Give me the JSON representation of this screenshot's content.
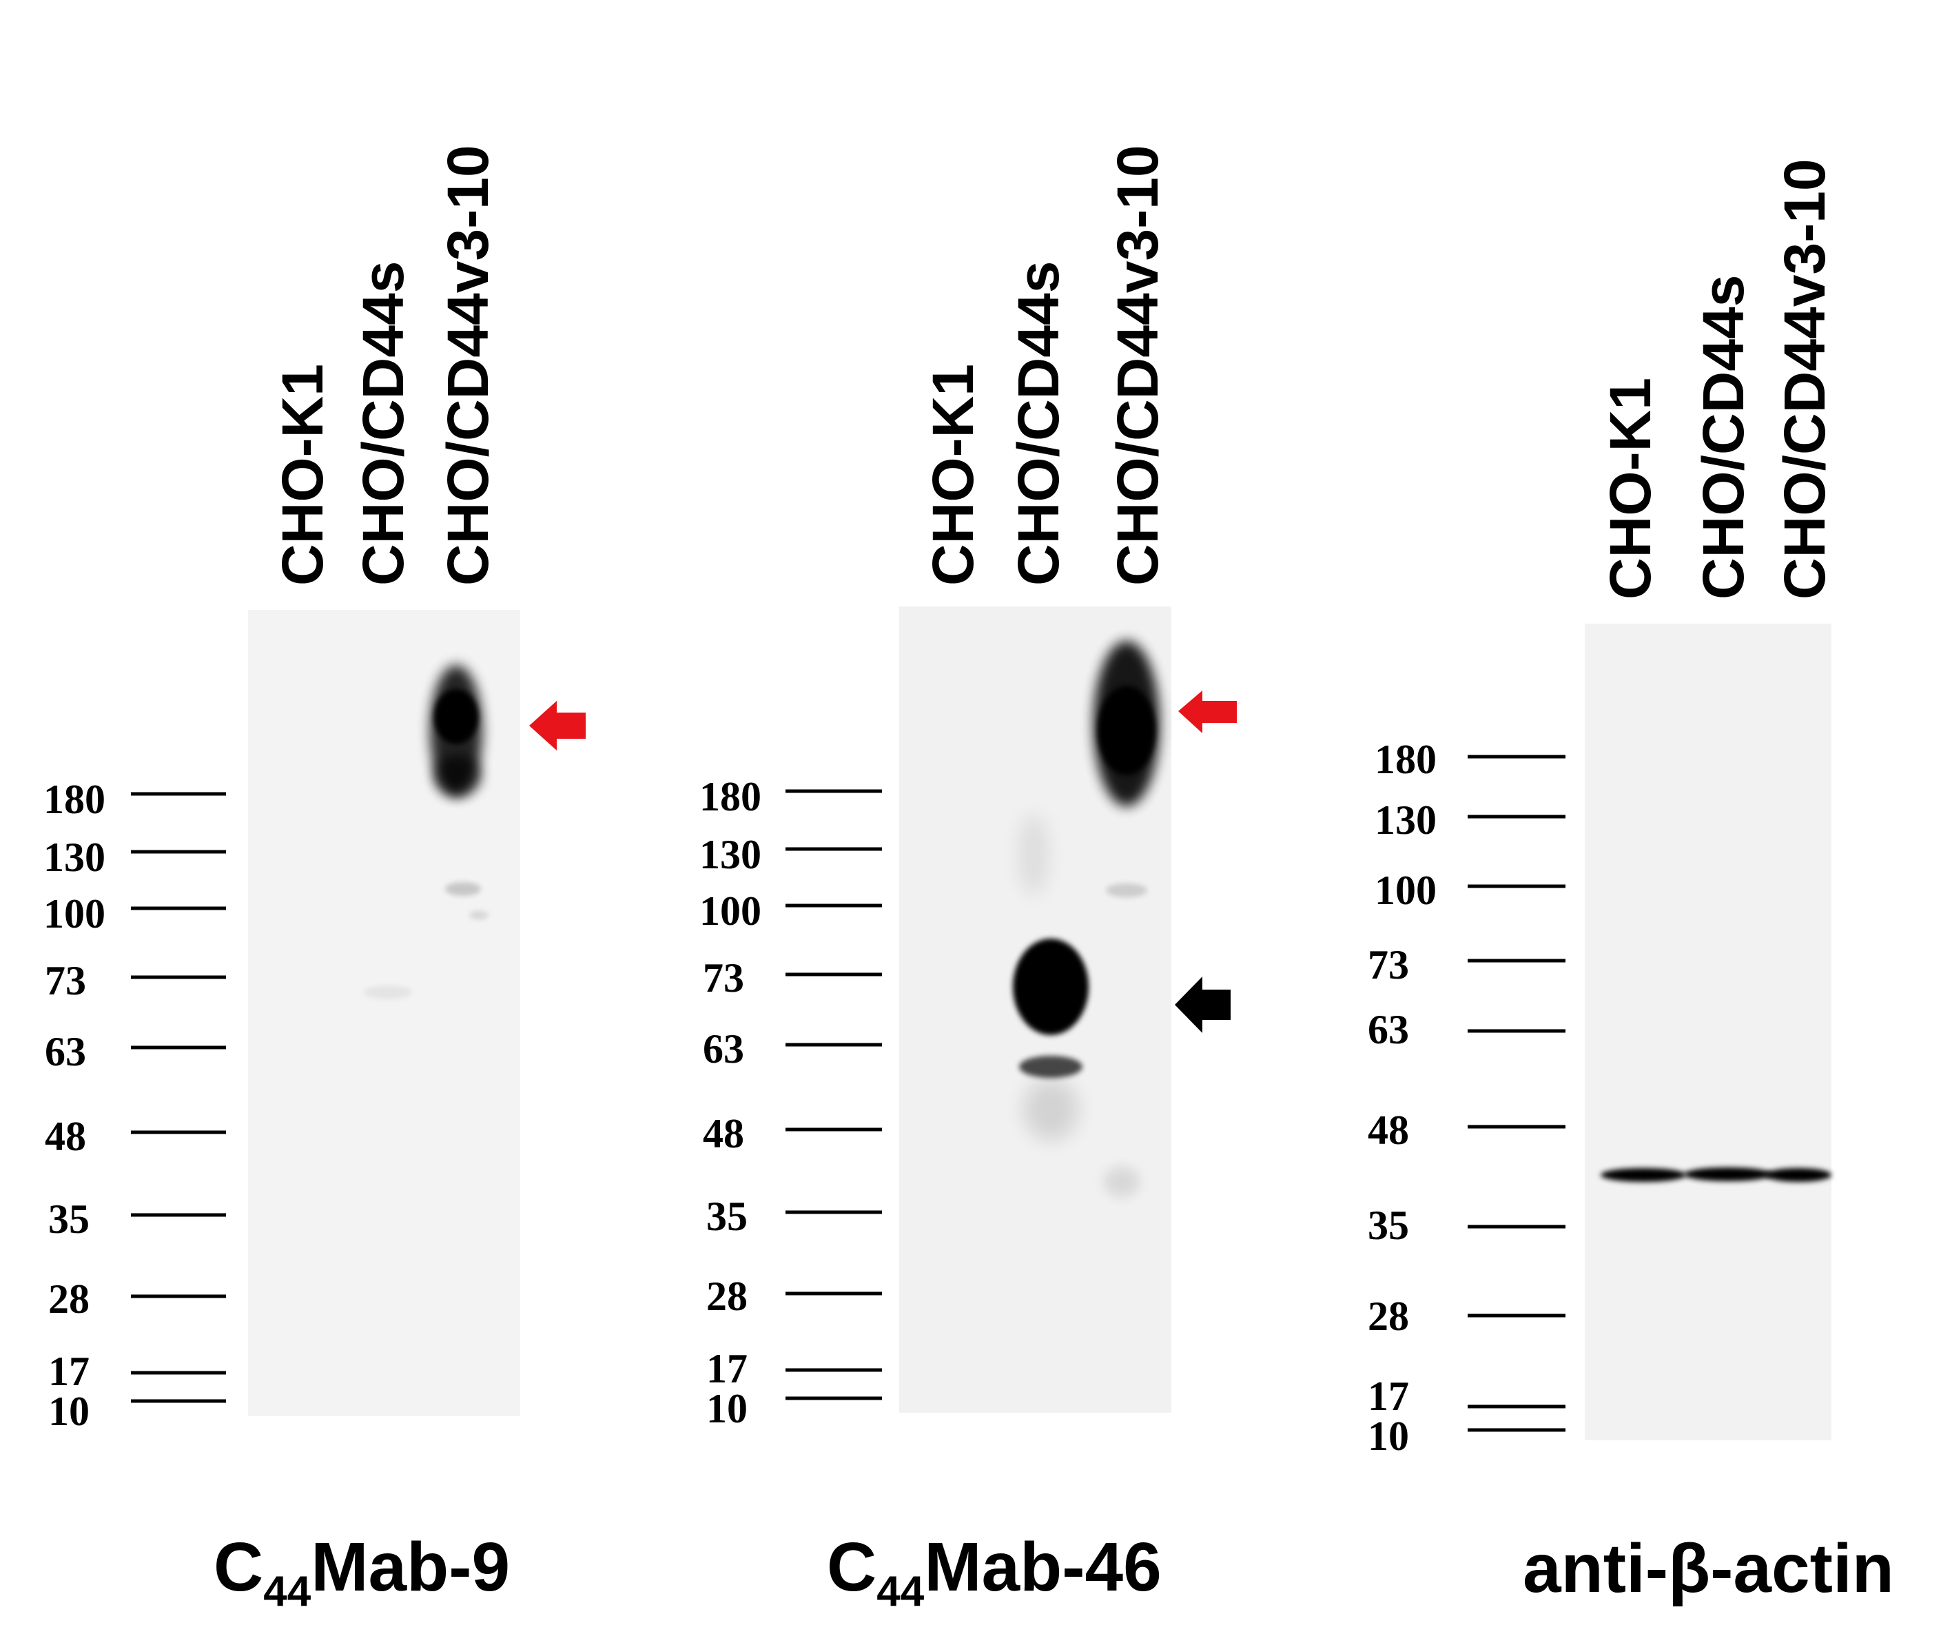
{
  "panels": [
    {
      "title": {
        "prefix": "C",
        "subscript": "44",
        "suffix": "Mab-9"
      },
      "lanes": [
        "CHO-K1",
        "CHO/CD44s",
        "CHO/CD44v3-10"
      ],
      "markers": [
        "180",
        "130",
        "100",
        "73",
        "63",
        "48",
        "35",
        "28",
        "17",
        "10"
      ],
      "arrows": [
        {
          "color": "#e8141b",
          "direction": "left"
        }
      ]
    },
    {
      "title": {
        "prefix": "C",
        "subscript": "44",
        "suffix": "Mab-46"
      },
      "lanes": [
        "CHO-K1",
        "CHO/CD44s",
        "CHO/CD44v3-10"
      ],
      "markers": [
        "180",
        "130",
        "100",
        "73",
        "63",
        "48",
        "35",
        "28",
        "17",
        "10"
      ],
      "arrows": [
        {
          "color": "#e8141b",
          "direction": "left"
        },
        {
          "color": "#000000",
          "direction": "left"
        }
      ]
    },
    {
      "title": {
        "prefix": "anti-β-actin",
        "subscript": "",
        "suffix": ""
      },
      "lanes": [
        "CHO-K1",
        "CHO/CD44s",
        "CHO/CD44v3-10"
      ],
      "markers": [
        "180",
        "130",
        "100",
        "73",
        "63",
        "48",
        "35",
        "28",
        "17",
        "10"
      ],
      "arrows": []
    }
  ],
  "colors": {
    "membrane": "#f3f3f3",
    "band": "#000000",
    "red_arrow": "#e8141b",
    "black_arrow": "#000000"
  }
}
